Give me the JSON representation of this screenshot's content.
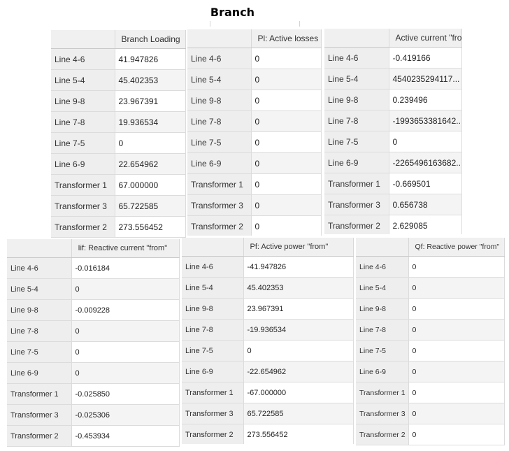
{
  "page_title": "Branch",
  "row_labels": [
    "Line 4-6",
    "Line 5-4",
    "Line 9-8",
    "Line 7-8",
    "Line 7-5",
    "Line 6-9",
    "Transformer 1",
    "Transformer 3",
    "Transformer 2"
  ],
  "panels": [
    {
      "header": "Branch Loading",
      "values": [
        "41.947826",
        "45.402353",
        "23.967391",
        "19.936534",
        "0",
        "22.654962",
        "67.000000",
        "65.722585",
        "273.556452"
      ]
    },
    {
      "header": "Pl: Active losses",
      "values": [
        "0",
        "0",
        "0",
        "0",
        "0",
        "0",
        "0",
        "0",
        "0"
      ]
    },
    {
      "header": "Active current \"fro",
      "values": [
        "-0.419166",
        "4540235294117...",
        "0.239496",
        "-1993653381642...",
        "0",
        "-2265496163682...",
        "-0.669501",
        "0.656738",
        "2.629085"
      ]
    },
    {
      "header": "Iif: Reactive current \"from\"",
      "values": [
        "-0.016184",
        "0",
        "-0.009228",
        "0",
        "0",
        "0",
        "-0.025850",
        "-0.025306",
        "-0.453934"
      ]
    },
    {
      "header": "Pf: Active power \"from\"",
      "values": [
        "-41.947826",
        "45.402353",
        "23.967391",
        "-19.936534",
        "0",
        "-22.654962",
        "-67.000000",
        "65.722585",
        "273.556452"
      ]
    },
    {
      "header": "Qf: Reactive power \"from\"",
      "values": [
        "0",
        "0",
        "0",
        "0",
        "0",
        "0",
        "0",
        "0",
        "0"
      ]
    }
  ]
}
